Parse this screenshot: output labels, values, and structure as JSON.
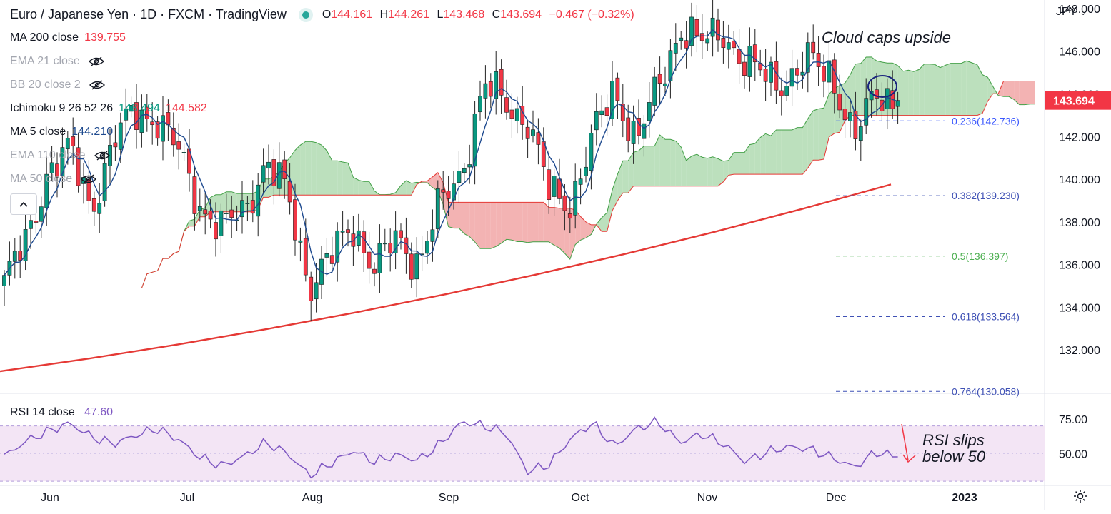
{
  "header": {
    "symbol_title": "Euro / Japanese Yen · 1D · FXCM · TradingView",
    "open": "144.161",
    "high": "144.261",
    "low": "143.468",
    "close": "143.694",
    "change": "−0.467 (−0.32%)",
    "o_label": "O",
    "h_label": "H",
    "l_label": "L",
    "c_label": "C",
    "status_color": "#26a69a"
  },
  "indicators": [
    {
      "name": "MA 200 close",
      "values": [
        "139.755"
      ],
      "colors": [
        "#f23645"
      ],
      "hidden": false
    },
    {
      "name": "EMA 21 close",
      "values": [],
      "colors": [],
      "hidden": true
    },
    {
      "name": "BB 20 close 2",
      "values": [],
      "colors": [],
      "hidden": true
    },
    {
      "name": "Ichimoku 9 26 52 26",
      "values": [
        "143.494",
        "144.582"
      ],
      "colors": [
        "#089981",
        "#f23645"
      ],
      "hidden": false
    },
    {
      "name": "MA 5 close",
      "values": [
        "144.210"
      ],
      "colors": [
        "#1e4a8f"
      ],
      "hidden": false
    },
    {
      "name": "EMA 110 close",
      "values": [],
      "colors": [],
      "hidden": true
    },
    {
      "name": "MA 50 close",
      "values": [],
      "colors": [],
      "hidden": true
    }
  ],
  "collapse_icon": "chevron-up-icon",
  "currency": "JPY",
  "annotations": {
    "cloud": "Cloud caps upside",
    "rsi": "RSI slips below 50"
  },
  "colors": {
    "up": "#089981",
    "down": "#f23645",
    "ma200": "#e53935",
    "ma5": "#1e4a8f",
    "cloud_bull": "#a5d6a7",
    "cloud_bear": "#ef9a9a",
    "rsi_line": "#7e57c2",
    "rsi_band": "#f3e5f5",
    "price_tag": "#f23645",
    "fib_blue": "#3d5afe",
    "fib_green": "#4caf50",
    "fib_purple": "#3f51b5",
    "circle": "#1a237e"
  },
  "chart_data": {
    "type": "candlestick",
    "title": "Euro / Japanese Yen · 1D · FXCM · TradingView",
    "y_axis": {
      "ticks": [
        132,
        134,
        136,
        138,
        140,
        142,
        144,
        146,
        148
      ],
      "range": [
        130.0,
        148.4
      ],
      "side": "right"
    },
    "x_axis": {
      "ticks": [
        "Jun",
        "Jul",
        "Aug",
        "Sep",
        "Oct",
        "Nov",
        "Dec",
        "2023"
      ]
    },
    "last_price": 143.694,
    "close_path": [
      {
        "month": "Jun",
        "close": 135.2
      },
      {
        "month": "Jun",
        "close": 137.0
      },
      {
        "month": "Jun",
        "close": 140.5
      },
      {
        "month": "Jun",
        "close": 141.3
      },
      {
        "month": "Jun",
        "close": 138.7
      },
      {
        "month": "Jun",
        "close": 141.7
      },
      {
        "month": "Jun",
        "close": 143.2
      },
      {
        "month": "Jul",
        "close": 142.9
      },
      {
        "month": "Jul",
        "close": 141.2
      },
      {
        "month": "Jul",
        "close": 138.8
      },
      {
        "month": "Jul",
        "close": 137.6
      },
      {
        "month": "Jul",
        "close": 138.6
      },
      {
        "month": "Jul",
        "close": 140.8
      },
      {
        "month": "Jul",
        "close": 139.2
      },
      {
        "month": "Aug",
        "close": 135.1
      },
      {
        "month": "Aug",
        "close": 136.3
      },
      {
        "month": "Aug",
        "close": 137.9
      },
      {
        "month": "Aug",
        "close": 135.8
      },
      {
        "month": "Aug",
        "close": 137.2
      },
      {
        "month": "Aug",
        "close": 136.2
      },
      {
        "month": "Aug",
        "close": 138.7
      },
      {
        "month": "Sep",
        "close": 140.5
      },
      {
        "month": "Sep",
        "close": 144.3
      },
      {
        "month": "Sep",
        "close": 143.6
      },
      {
        "month": "Sep",
        "close": 142.8
      },
      {
        "month": "Sep",
        "close": 139.3
      },
      {
        "month": "Sep",
        "close": 139.0
      },
      {
        "month": "Oct",
        "close": 141.9
      },
      {
        "month": "Oct",
        "close": 144.3
      },
      {
        "month": "Oct",
        "close": 141.8
      },
      {
        "month": "Oct",
        "close": 144.2
      },
      {
        "month": "Oct",
        "close": 147.2
      },
      {
        "month": "Oct",
        "close": 146.3
      },
      {
        "month": "Nov",
        "close": 147.0
      },
      {
        "month": "Nov",
        "close": 145.3
      },
      {
        "month": "Nov",
        "close": 144.8
      },
      {
        "month": "Nov",
        "close": 144.7
      },
      {
        "month": "Nov",
        "close": 145.5
      },
      {
        "month": "Nov",
        "close": 145.0
      },
      {
        "month": "Dec",
        "close": 141.7
      },
      {
        "month": "Dec",
        "close": 144.2
      },
      {
        "month": "Dec",
        "close": 143.694
      }
    ],
    "ma200": {
      "name": "MA 200 close",
      "start": 131.0,
      "end": 139.755
    },
    "ichimoku": {
      "conversion": 143.494,
      "base": 144.582
    },
    "fibonacci": [
      {
        "label": "0.236(142.736)",
        "level": 0.236,
        "price": 142.736
      },
      {
        "label": "0.382(139.230)",
        "level": 0.382,
        "price": 139.23
      },
      {
        "label": "0.5(136.397)",
        "level": 0.5,
        "price": 136.397
      },
      {
        "label": "0.618(133.564)",
        "level": 0.618,
        "price": 133.564
      },
      {
        "label": "0.764(130.058)",
        "level": 0.764,
        "price": 130.058
      }
    ],
    "rsi": {
      "name": "RSI 14 close",
      "value": 47.6,
      "value_label": "47.60",
      "ticks": [
        "75.00",
        "50.00"
      ],
      "range": [
        28,
        93
      ],
      "bands": [
        30,
        70
      ],
      "path": [
        48,
        59,
        66,
        72,
        62,
        57,
        63,
        68,
        60,
        47,
        41,
        48,
        58,
        50,
        34,
        43,
        52,
        44,
        49,
        45,
        57,
        73,
        70,
        65,
        37,
        42,
        61,
        72,
        55,
        68,
        73,
        58,
        64,
        57,
        44,
        51,
        55,
        53,
        47,
        40,
        51,
        47.6
      ]
    }
  }
}
